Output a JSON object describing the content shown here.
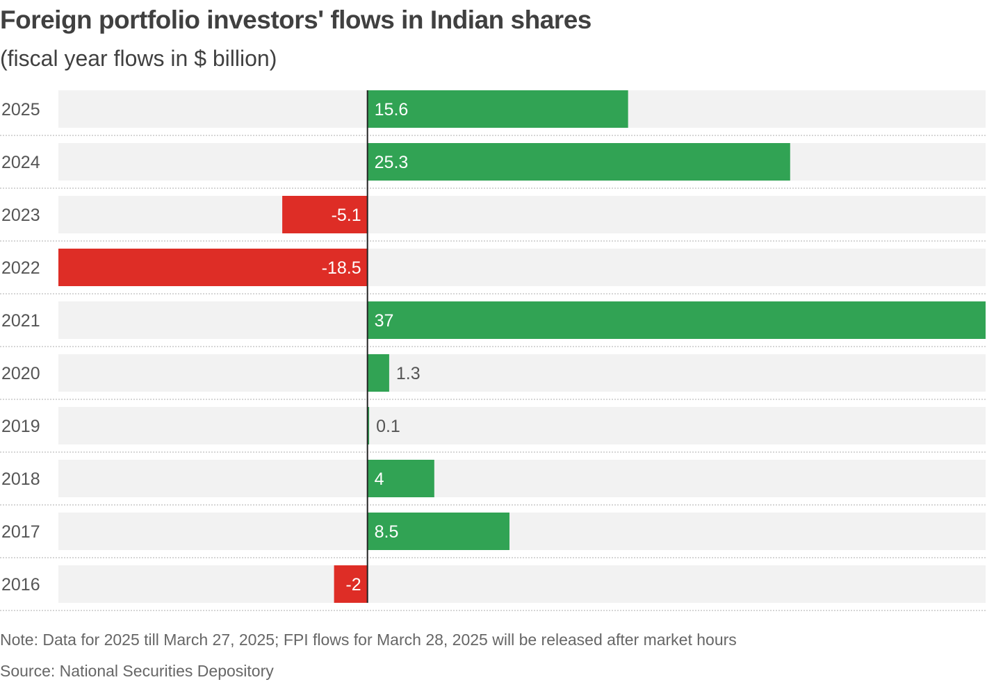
{
  "title": "Foreign portfolio investors' flows in Indian shares",
  "subtitle": "(fiscal year flows in $ billion)",
  "note": "Note: Data for 2025 till March 27, 2025; FPI flows for March 28, 2025 will be released after market hours",
  "source": "Source: National Securities Depository",
  "colors": {
    "positive": "#31a354",
    "negative": "#de2d26",
    "track": "#f2f2f2",
    "axis": "#222222",
    "separator": "#c8c8c8",
    "label_inside": "#ffffff",
    "label_outside": "#555555"
  },
  "chart_data": {
    "type": "bar",
    "orientation": "horizontal",
    "title": "Foreign portfolio investors' flows in Indian shares",
    "subtitle": "(fiscal year flows in $ billion)",
    "xlabel": "",
    "ylabel": "",
    "xlim": [
      -18.5,
      37
    ],
    "categories": [
      "2025",
      "2024",
      "2023",
      "2022",
      "2021",
      "2020",
      "2019",
      "2018",
      "2017",
      "2016"
    ],
    "values": [
      15.6,
      25.3,
      -5.1,
      -18.5,
      37,
      1.3,
      0.1,
      4,
      8.5,
      -2
    ],
    "value_labels": [
      "15.6",
      "25.3",
      "-5.1",
      "-18.5",
      "37",
      "1.3",
      "0.1",
      "4",
      "8.5",
      "-2"
    ],
    "grid": false,
    "legend": "none"
  }
}
